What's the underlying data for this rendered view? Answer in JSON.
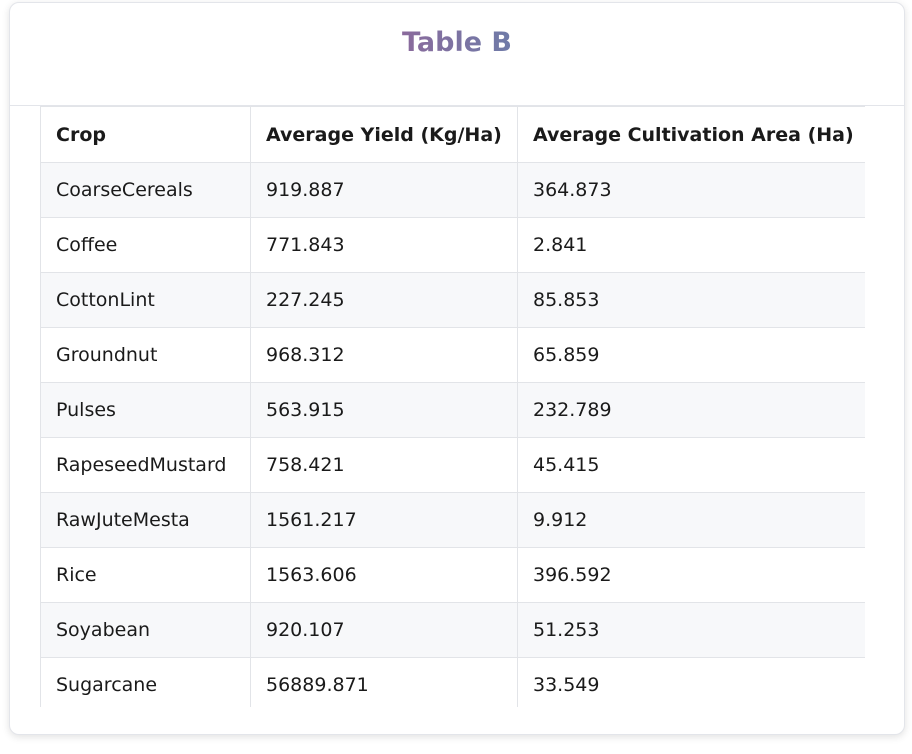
{
  "header": {
    "title": "Table B"
  },
  "table": {
    "columns": [
      "Crop",
      "Average Yield (Kg/Ha)",
      "Average Cultivation Area (Ha)"
    ],
    "rows": [
      [
        "CoarseCereals",
        "919.887",
        "364.873"
      ],
      [
        "Coffee",
        "771.843",
        "2.841"
      ],
      [
        "CottonLint",
        "227.245",
        "85.853"
      ],
      [
        "Groundnut",
        "968.312",
        "65.859"
      ],
      [
        "Pulses",
        "563.915",
        "232.789"
      ],
      [
        "RapeseedMustard",
        "758.421",
        "45.415"
      ],
      [
        "RawJuteMesta",
        "1561.217",
        "9.912"
      ],
      [
        "Rice",
        "1563.606",
        "396.592"
      ],
      [
        "Soyabean",
        "920.107",
        "51.253"
      ],
      [
        "Sugarcane",
        "56889.871",
        "33.549"
      ]
    ]
  },
  "colors": {
    "title_gradient_start": "#8a6a9c",
    "title_gradient_end": "#6f7ba8",
    "stripe": "#f7f8fa",
    "border": "#e2e4e8"
  }
}
